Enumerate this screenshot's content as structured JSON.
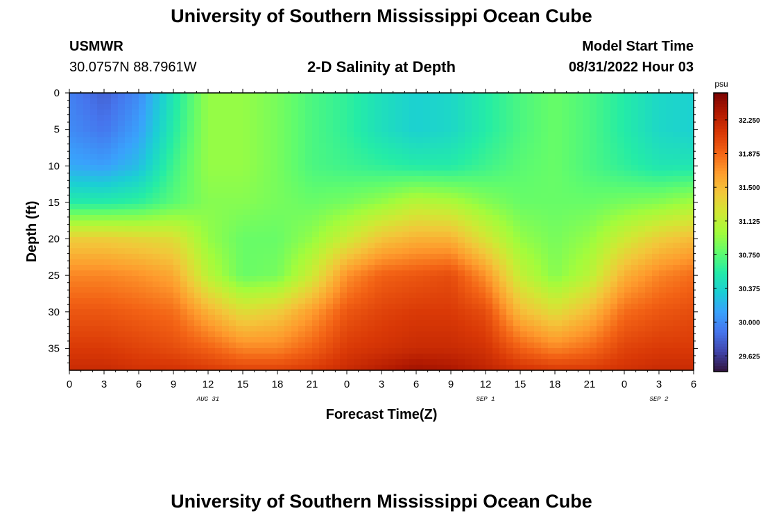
{
  "header": {
    "title": "University of Southern Mississippi Ocean Cube",
    "station": "USMWR",
    "coordinates": "30.0757N  88.7961W",
    "subtitle": "2-D Salinity at Depth",
    "model_start_label": "Model Start Time",
    "model_start_value": "08/31/2022 Hour 03"
  },
  "footer": {
    "title": "University of Southern Mississippi Ocean Cube"
  },
  "chart_data": {
    "type": "heatmap",
    "title": "2-D Salinity at Depth",
    "xlabel": "Forecast Time(Z)",
    "ylabel": "Depth (ft)",
    "x_ticks": [
      "0",
      "3",
      "6",
      "9",
      "12",
      "15",
      "18",
      "21",
      "0",
      "3",
      "6",
      "9",
      "12",
      "15",
      "18",
      "21",
      "0",
      "3",
      "6"
    ],
    "x_range_hours": [
      0,
      54
    ],
    "date_labels": [
      {
        "label": "AUG 31",
        "hour": 12
      },
      {
        "label": "SEP 1",
        "hour": 36
      },
      {
        "label": "SEP 2",
        "hour": 51
      }
    ],
    "y_ticks": [
      "0",
      "5",
      "10",
      "15",
      "20",
      "25",
      "30",
      "35"
    ],
    "y_range_ft": [
      0,
      38
    ],
    "y_inverted": true,
    "colorbar": {
      "unit": "psu",
      "min": 29.45,
      "max": 32.55,
      "ticks": [
        "32.250",
        "31.875",
        "31.500",
        "31.125",
        "30.750",
        "30.375",
        "30.000",
        "29.625"
      ]
    },
    "salinity_keypoints": {
      "hours": [
        0,
        3,
        6,
        9,
        12,
        15,
        18,
        21,
        24,
        27,
        30,
        33,
        36,
        39,
        42,
        45,
        48,
        51,
        54
      ],
      "depths_ft": [
        0,
        5,
        10,
        15,
        20,
        25,
        30,
        35,
        38
      ],
      "values_psu": [
        [
          29.95,
          29.8,
          30.0,
          30.5,
          30.95,
          30.95,
          30.85,
          30.7,
          30.6,
          30.45,
          30.35,
          30.4,
          30.55,
          30.7,
          30.8,
          30.7,
          30.55,
          30.4,
          30.35
        ],
        [
          30.0,
          29.9,
          30.1,
          30.55,
          30.95,
          30.95,
          30.85,
          30.7,
          30.6,
          30.45,
          30.35,
          30.4,
          30.55,
          30.7,
          30.8,
          30.7,
          30.55,
          30.4,
          30.35
        ],
        [
          30.15,
          30.1,
          30.25,
          30.65,
          30.95,
          30.95,
          30.85,
          30.7,
          30.65,
          30.6,
          30.55,
          30.55,
          30.65,
          30.75,
          30.8,
          30.7,
          30.6,
          30.5,
          30.5
        ],
        [
          30.55,
          30.55,
          30.6,
          30.75,
          30.9,
          30.9,
          30.85,
          30.8,
          30.85,
          30.95,
          31.1,
          31.05,
          30.9,
          30.8,
          30.8,
          30.8,
          30.85,
          30.9,
          31.0
        ],
        [
          31.4,
          31.4,
          31.35,
          31.3,
          30.95,
          30.8,
          30.8,
          30.95,
          31.2,
          31.45,
          31.55,
          31.55,
          31.25,
          30.95,
          30.85,
          30.95,
          31.2,
          31.4,
          31.5
        ],
        [
          31.75,
          31.75,
          31.7,
          31.6,
          31.1,
          30.8,
          30.85,
          31.2,
          31.7,
          31.9,
          31.95,
          32.0,
          31.7,
          31.15,
          30.9,
          31.1,
          31.55,
          31.75,
          31.85
        ],
        [
          31.95,
          31.95,
          31.9,
          31.85,
          31.55,
          31.3,
          31.4,
          31.65,
          31.95,
          32.05,
          32.1,
          32.1,
          32.0,
          31.5,
          31.3,
          31.5,
          31.85,
          31.95,
          32.0
        ],
        [
          32.1,
          32.1,
          32.05,
          32.0,
          31.9,
          31.75,
          31.75,
          31.9,
          32.1,
          32.15,
          32.2,
          32.2,
          32.15,
          31.9,
          31.75,
          31.85,
          32.05,
          32.1,
          32.1
        ],
        [
          32.2,
          32.2,
          32.15,
          32.15,
          32.1,
          32.05,
          32.05,
          32.1,
          32.2,
          32.3,
          32.4,
          32.35,
          32.25,
          32.15,
          32.1,
          32.1,
          32.15,
          32.2,
          32.2
        ]
      ]
    },
    "colormap": [
      "#30123b",
      "#4145ab",
      "#4675ed",
      "#39a2fc",
      "#1bcfd4",
      "#24eca6",
      "#61fc6c",
      "#a4fc3b",
      "#d1e834",
      "#f3c63a",
      "#fe9b2d",
      "#f36315",
      "#d93806",
      "#b11901",
      "#7a0402"
    ]
  }
}
